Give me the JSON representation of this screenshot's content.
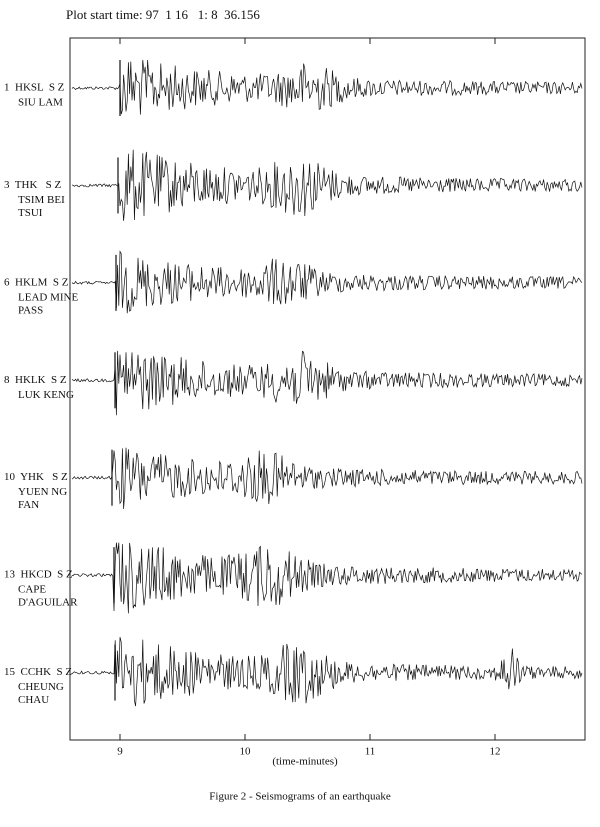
{
  "chart_data": {
    "type": "seismogram",
    "header": "Plot start time: 97  1 16   1: 8  36.156",
    "xlabel": "(time-minutes)",
    "caption": "Figure 2 - Seismograms of an earthquake",
    "xlim": [
      8.6,
      12.72
    ],
    "xticks": [
      9,
      10,
      11,
      12
    ],
    "stations": [
      {
        "code": "1  HKSL  S Z",
        "name": [
          "SIU LAM"
        ]
      },
      {
        "code": "3  THK   S Z",
        "name": [
          "TSIM BEI",
          "TSUI"
        ]
      },
      {
        "code": "6  HKLM  S Z",
        "name": [
          "LEAD MINE",
          "PASS"
        ]
      },
      {
        "code": "8  HKLK  S Z",
        "name": [
          "LUK KENG"
        ]
      },
      {
        "code": "10  YHK   S Z",
        "name": [
          "YUEN NG",
          "FAN"
        ]
      },
      {
        "code": "13  HKCD  S Z",
        "name": [
          "CAPE",
          "D'AGUILAR"
        ]
      },
      {
        "code": "15  CCHK  S Z",
        "name": [
          "CHEUNG",
          "CHAU"
        ]
      }
    ]
  }
}
